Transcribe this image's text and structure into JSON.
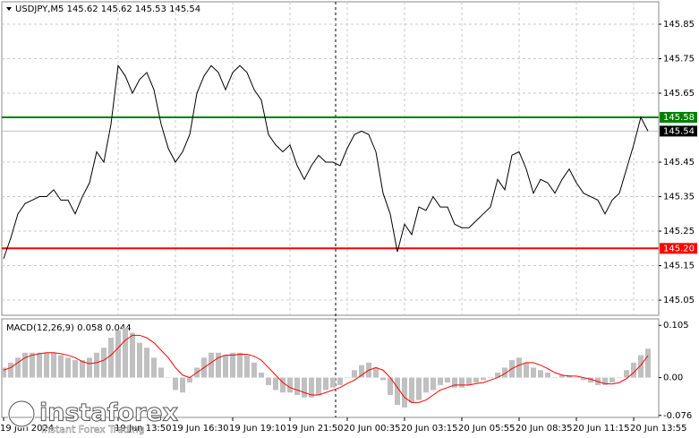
{
  "chart_data": [
    {
      "type": "line",
      "title": "USDJPY,M5  145.62 145.62 145.53 145.54",
      "color": "#000000",
      "values": [
        145.17,
        145.23,
        145.3,
        145.33,
        145.34,
        145.35,
        145.35,
        145.37,
        145.34,
        145.34,
        145.3,
        145.35,
        145.39,
        145.48,
        145.45,
        145.56,
        145.73,
        145.7,
        145.65,
        145.69,
        145.71,
        145.66,
        145.56,
        145.49,
        145.45,
        145.48,
        145.53,
        145.65,
        145.7,
        145.73,
        145.71,
        145.66,
        145.71,
        145.73,
        145.71,
        145.66,
        145.63,
        145.53,
        145.5,
        145.48,
        145.5,
        145.44,
        145.4,
        145.44,
        145.47,
        145.45,
        145.45,
        145.44,
        145.49,
        145.53,
        145.54,
        145.53,
        145.48,
        145.36,
        145.3,
        145.19,
        145.27,
        145.24,
        145.32,
        145.31,
        145.35,
        145.32,
        145.32,
        145.27,
        145.26,
        145.26,
        145.28,
        145.3,
        145.32,
        145.4,
        145.37,
        145.47,
        145.48,
        145.43,
        145.36,
        145.4,
        145.39,
        145.36,
        145.4,
        145.43,
        145.39,
        145.36,
        145.35,
        145.34,
        145.3,
        145.34,
        145.36,
        145.43,
        145.5,
        145.58,
        145.54
      ],
      "ylim": [
        145.006,
        145.915
      ],
      "yticks": [
        145.85,
        145.75,
        145.65,
        145.45,
        145.35,
        145.25,
        145.15,
        145.05
      ],
      "grid": true,
      "hlines": [
        {
          "value": 145.58,
          "color": "#008000"
        },
        {
          "value": 145.2,
          "label": "145.20",
          "color": "#ff0000"
        }
      ],
      "last_price": {
        "value": 145.54,
        "color": "#000000"
      }
    },
    {
      "type": "bar",
      "title": "MACD(12,26,9) 0.058 0.044",
      "categories": [
        "19 Jun 2024",
        null,
        null,
        null,
        null,
        null,
        null,
        null,
        null,
        null,
        null,
        null,
        null,
        null,
        null,
        null,
        "19 Jun 13:50",
        null,
        null,
        null,
        null,
        null,
        null,
        null,
        "19 Jun 16:30",
        null,
        null,
        null,
        null,
        null,
        null,
        null,
        "19 Jun 19:10",
        null,
        null,
        null,
        null,
        null,
        null,
        null,
        "19 Jun 21:50",
        null,
        null,
        null,
        null,
        null,
        null,
        null,
        "20 Jun 00:35",
        null,
        null,
        null,
        null,
        null,
        null,
        null,
        "20 Jun 03:15",
        null,
        null,
        null,
        null,
        null,
        null,
        null,
        "20 Jun 05:55",
        null,
        null,
        null,
        null,
        null,
        null,
        null,
        "20 Jun 08:35",
        null,
        null,
        null,
        null,
        null,
        null,
        null,
        "20 Jun 11:15",
        null,
        null,
        null,
        null,
        null,
        null,
        null,
        "20 Jun 13:55",
        null,
        null
      ],
      "series": [
        {
          "type": "bar",
          "color": "#c0c0c0",
          "values": [
            0.02,
            0.03,
            0.04,
            0.05,
            0.05,
            0.05,
            0.05,
            0.05,
            0.045,
            0.04,
            0.035,
            0.035,
            0.04,
            0.05,
            0.06,
            0.08,
            0.095,
            0.1,
            0.09,
            0.07,
            0.06,
            0.04,
            0.02,
            0.0,
            -0.025,
            -0.03,
            -0.01,
            0.02,
            0.04,
            0.05,
            0.05,
            0.045,
            0.05,
            0.05,
            0.045,
            0.03,
            0.01,
            -0.015,
            -0.025,
            -0.03,
            -0.03,
            -0.035,
            -0.04,
            -0.04,
            -0.035,
            -0.025,
            -0.02,
            -0.015,
            0.0,
            0.015,
            0.025,
            0.03,
            0.02,
            -0.005,
            -0.035,
            -0.055,
            -0.06,
            -0.05,
            -0.045,
            -0.03,
            -0.025,
            -0.015,
            -0.01,
            -0.02,
            -0.02,
            -0.015,
            -0.01,
            -0.005,
            0.0,
            0.01,
            0.02,
            0.035,
            0.04,
            0.03,
            0.02,
            0.015,
            0.01,
            0.0,
            0.005,
            0.005,
            0.0,
            -0.005,
            -0.01,
            -0.015,
            -0.015,
            -0.01,
            0.0,
            0.015,
            0.03,
            0.045,
            0.058
          ]
        },
        {
          "type": "line",
          "color": "#ff0000",
          "values": [
            0.015,
            0.02,
            0.03,
            0.04,
            0.045,
            0.048,
            0.05,
            0.05,
            0.048,
            0.045,
            0.04,
            0.032,
            0.028,
            0.03,
            0.035,
            0.045,
            0.06,
            0.075,
            0.085,
            0.085,
            0.08,
            0.07,
            0.055,
            0.04,
            0.02,
            0.005,
            0.0,
            0.01,
            0.02,
            0.03,
            0.04,
            0.045,
            0.045,
            0.047,
            0.047,
            0.043,
            0.035,
            0.02,
            0.005,
            -0.01,
            -0.02,
            -0.025,
            -0.03,
            -0.035,
            -0.035,
            -0.03,
            -0.025,
            -0.02,
            -0.012,
            -0.005,
            0.005,
            0.015,
            0.02,
            0.015,
            0.0,
            -0.02,
            -0.04,
            -0.05,
            -0.05,
            -0.045,
            -0.035,
            -0.025,
            -0.02,
            -0.015,
            -0.015,
            -0.015,
            -0.012,
            -0.01,
            -0.005,
            0.0,
            0.008,
            0.018,
            0.025,
            0.03,
            0.03,
            0.025,
            0.018,
            0.01,
            0.005,
            0.003,
            0.003,
            0.0,
            -0.003,
            -0.008,
            -0.012,
            -0.013,
            -0.01,
            -0.002,
            0.01,
            0.025,
            0.044
          ]
        }
      ],
      "ylim": [
        -0.08,
        0.118
      ],
      "yticks": [
        0.105,
        {
          "value": 0,
          "label": "0.00"
        },
        -0.076
      ]
    }
  ],
  "branding": {
    "name": "instaforex",
    "tagline": "Instant Forex Trading"
  }
}
